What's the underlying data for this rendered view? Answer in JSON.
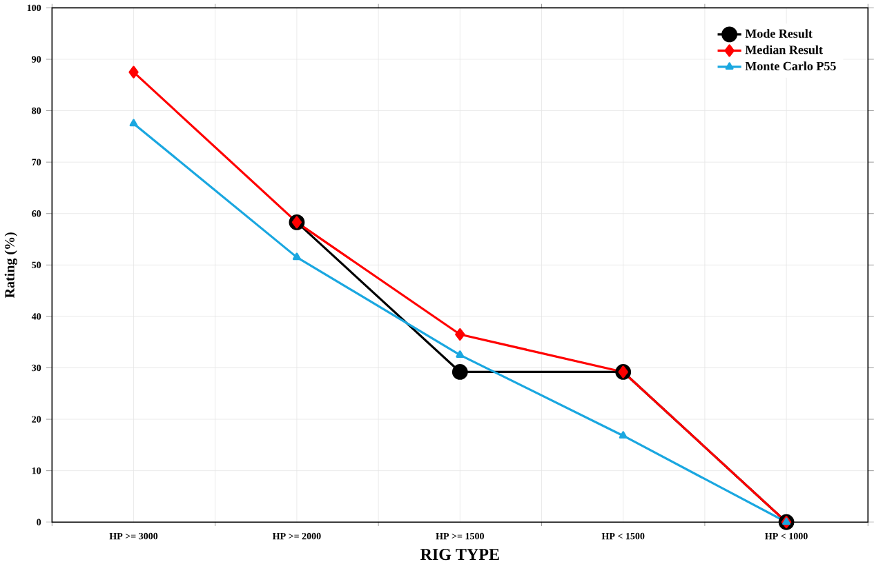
{
  "chart_data": {
    "type": "line",
    "xlabel": "RIG TYPE",
    "ylabel": "Rating (%)",
    "categories": [
      "HP >= 3000",
      "HP >= 2000",
      "HP >= 1500",
      "HP < 1500",
      "HP < 1000"
    ],
    "series": [
      {
        "name": "Mode Result",
        "color": "#000000",
        "marker": "circle",
        "values": [
          null,
          58.3,
          29.2,
          29.2,
          0
        ]
      },
      {
        "name": "Median Result",
        "color": "#ff0000",
        "marker": "diamond",
        "values": [
          87.5,
          58.3,
          36.5,
          29.2,
          0
        ]
      },
      {
        "name": "Monte Carlo P55",
        "color": "#1aa7e0",
        "marker": "triangle",
        "values": [
          77.5,
          51.5,
          32.5,
          16.8,
          0
        ]
      }
    ],
    "ylim": [
      0,
      100
    ],
    "yticks": [
      0,
      10,
      20,
      30,
      40,
      50,
      60,
      70,
      80,
      90,
      100
    ],
    "grid": true,
    "legend": "top right",
    "line_style": "solid"
  }
}
